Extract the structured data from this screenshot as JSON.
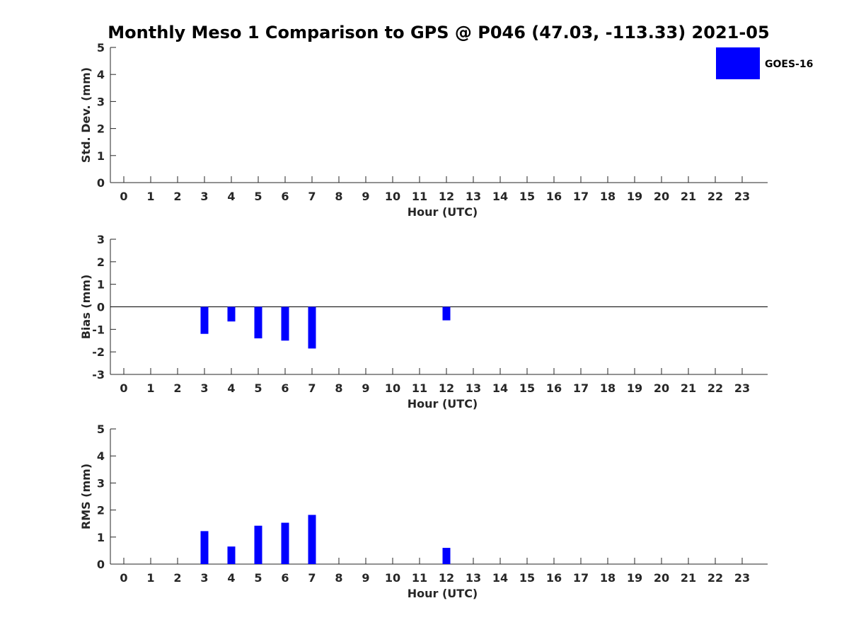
{
  "title": "Monthly Meso 1 Comparison to GPS @ P046 (47.03, -113.33) 2021-05",
  "legend": {
    "label": "GOES-16",
    "color": "#0000ff",
    "placement": "top-right"
  },
  "chart_data": [
    {
      "type": "bar",
      "xlabel": "Hour (UTC)",
      "ylabel": "Std. Dev. (mm)",
      "ylim": [
        0,
        5
      ],
      "yticks": [
        0,
        1,
        2,
        3,
        4,
        5
      ],
      "categories": [
        "0",
        "1",
        "2",
        "3",
        "4",
        "5",
        "6",
        "7",
        "8",
        "9",
        "10",
        "11",
        "12",
        "13",
        "14",
        "15",
        "16",
        "17",
        "18",
        "19",
        "20",
        "21",
        "22",
        "23"
      ],
      "series": [
        {
          "name": "GOES-16",
          "color": "#0000ff",
          "values": [
            null,
            null,
            null,
            null,
            null,
            null,
            null,
            null,
            null,
            null,
            null,
            null,
            null,
            null,
            null,
            null,
            null,
            null,
            null,
            null,
            null,
            null,
            null,
            null
          ]
        }
      ],
      "zero_line": false
    },
    {
      "type": "bar",
      "xlabel": "Hour (UTC)",
      "ylabel": "Bias (mm)",
      "ylim": [
        -3,
        3
      ],
      "yticks": [
        -3,
        -2,
        -1,
        0,
        1,
        2,
        3
      ],
      "categories": [
        "0",
        "1",
        "2",
        "3",
        "4",
        "5",
        "6",
        "7",
        "8",
        "9",
        "10",
        "11",
        "12",
        "13",
        "14",
        "15",
        "16",
        "17",
        "18",
        "19",
        "20",
        "21",
        "22",
        "23"
      ],
      "series": [
        {
          "name": "GOES-16",
          "color": "#0000ff",
          "values": [
            null,
            null,
            null,
            -1.2,
            -0.65,
            -1.4,
            -1.5,
            -1.85,
            null,
            null,
            null,
            null,
            -0.6,
            null,
            null,
            null,
            null,
            null,
            null,
            null,
            null,
            null,
            null,
            null
          ]
        }
      ],
      "zero_line": true
    },
    {
      "type": "bar",
      "xlabel": "Hour (UTC)",
      "ylabel": "RMS (mm)",
      "ylim": [
        0,
        5
      ],
      "yticks": [
        0,
        1,
        2,
        3,
        4,
        5
      ],
      "categories": [
        "0",
        "1",
        "2",
        "3",
        "4",
        "5",
        "6",
        "7",
        "8",
        "9",
        "10",
        "11",
        "12",
        "13",
        "14",
        "15",
        "16",
        "17",
        "18",
        "19",
        "20",
        "21",
        "22",
        "23"
      ],
      "series": [
        {
          "name": "GOES-16",
          "color": "#0000ff",
          "values": [
            null,
            null,
            null,
            1.22,
            0.65,
            1.42,
            1.53,
            1.82,
            null,
            null,
            null,
            null,
            0.6,
            null,
            null,
            null,
            null,
            null,
            null,
            null,
            null,
            null,
            null,
            null
          ]
        }
      ],
      "zero_line": false
    }
  ]
}
